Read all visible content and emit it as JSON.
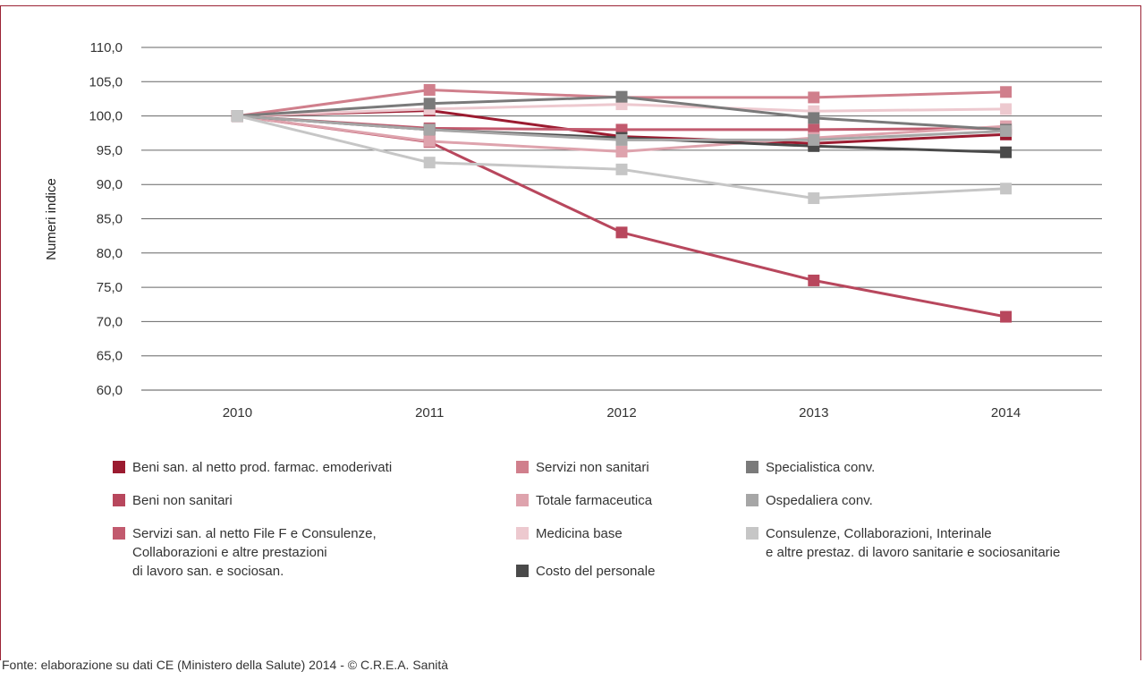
{
  "chart_data": {
    "type": "line",
    "title": "",
    "xlabel": "",
    "ylabel": "Numeri indice",
    "ylim": [
      60,
      110
    ],
    "yticks": [
      "60,0",
      "65,0",
      "70,0",
      "75,0",
      "80,0",
      "85,0",
      "90,0",
      "95,0",
      "100,0",
      "105,0",
      "110,0"
    ],
    "categories": [
      "2010",
      "2011",
      "2012",
      "2013",
      "2014"
    ],
    "grid": true,
    "legend_position": "bottom",
    "series": [
      {
        "name": "Beni san. al netto prod. farmac. emoderivati",
        "color": "#9b1b30",
        "values": [
          100,
          100.8,
          97,
          96,
          97.3
        ]
      },
      {
        "name": "Beni non sanitari",
        "color": "#b8475d",
        "values": [
          100,
          96.2,
          83,
          76,
          70.7
        ]
      },
      {
        "name": "Servizi san. al netto File F  e Consulenze,\nCollaborazioni e altre prestazioni\ndi lavoro san. e sociosan.",
        "color": "#c25a6e",
        "values": [
          100,
          98.2,
          98,
          98,
          98.2
        ]
      },
      {
        "name": "Servizi non sanitari",
        "color": "#d07f8c",
        "values": [
          100,
          103.8,
          102.7,
          102.7,
          103.5
        ]
      },
      {
        "name": "Totale farmaceutica",
        "color": "#dea3ad",
        "values": [
          100,
          96.3,
          94.8,
          96.8,
          98.5
        ]
      },
      {
        "name": "Medicina base",
        "color": "#edc9cf",
        "values": [
          100,
          101,
          101.7,
          100.7,
          101
        ]
      },
      {
        "name": "Costo del personale",
        "color": "#4a4a4a",
        "values": [
          100,
          98,
          96.8,
          95.6,
          94.7
        ]
      },
      {
        "name": "Specialistica conv.",
        "color": "#7a7a7a",
        "values": [
          100,
          101.8,
          102.8,
          99.7,
          98
        ]
      },
      {
        "name": "Ospedaliera conv.",
        "color": "#a6a6a6",
        "values": [
          100,
          98,
          96.5,
          96.5,
          97.8
        ]
      },
      {
        "name": "Consulenze, Collaborazioni, Interinale\ne altre prestaz. di lavoro sanitarie e sociosanitarie",
        "color": "#c6c6c6",
        "values": [
          100,
          93.2,
          92.2,
          88,
          89.4
        ]
      }
    ]
  },
  "source_note": "Fonte: elaborazione su dati CE (Ministero della Salute) 2014 - © C.R.E.A. Sanità"
}
